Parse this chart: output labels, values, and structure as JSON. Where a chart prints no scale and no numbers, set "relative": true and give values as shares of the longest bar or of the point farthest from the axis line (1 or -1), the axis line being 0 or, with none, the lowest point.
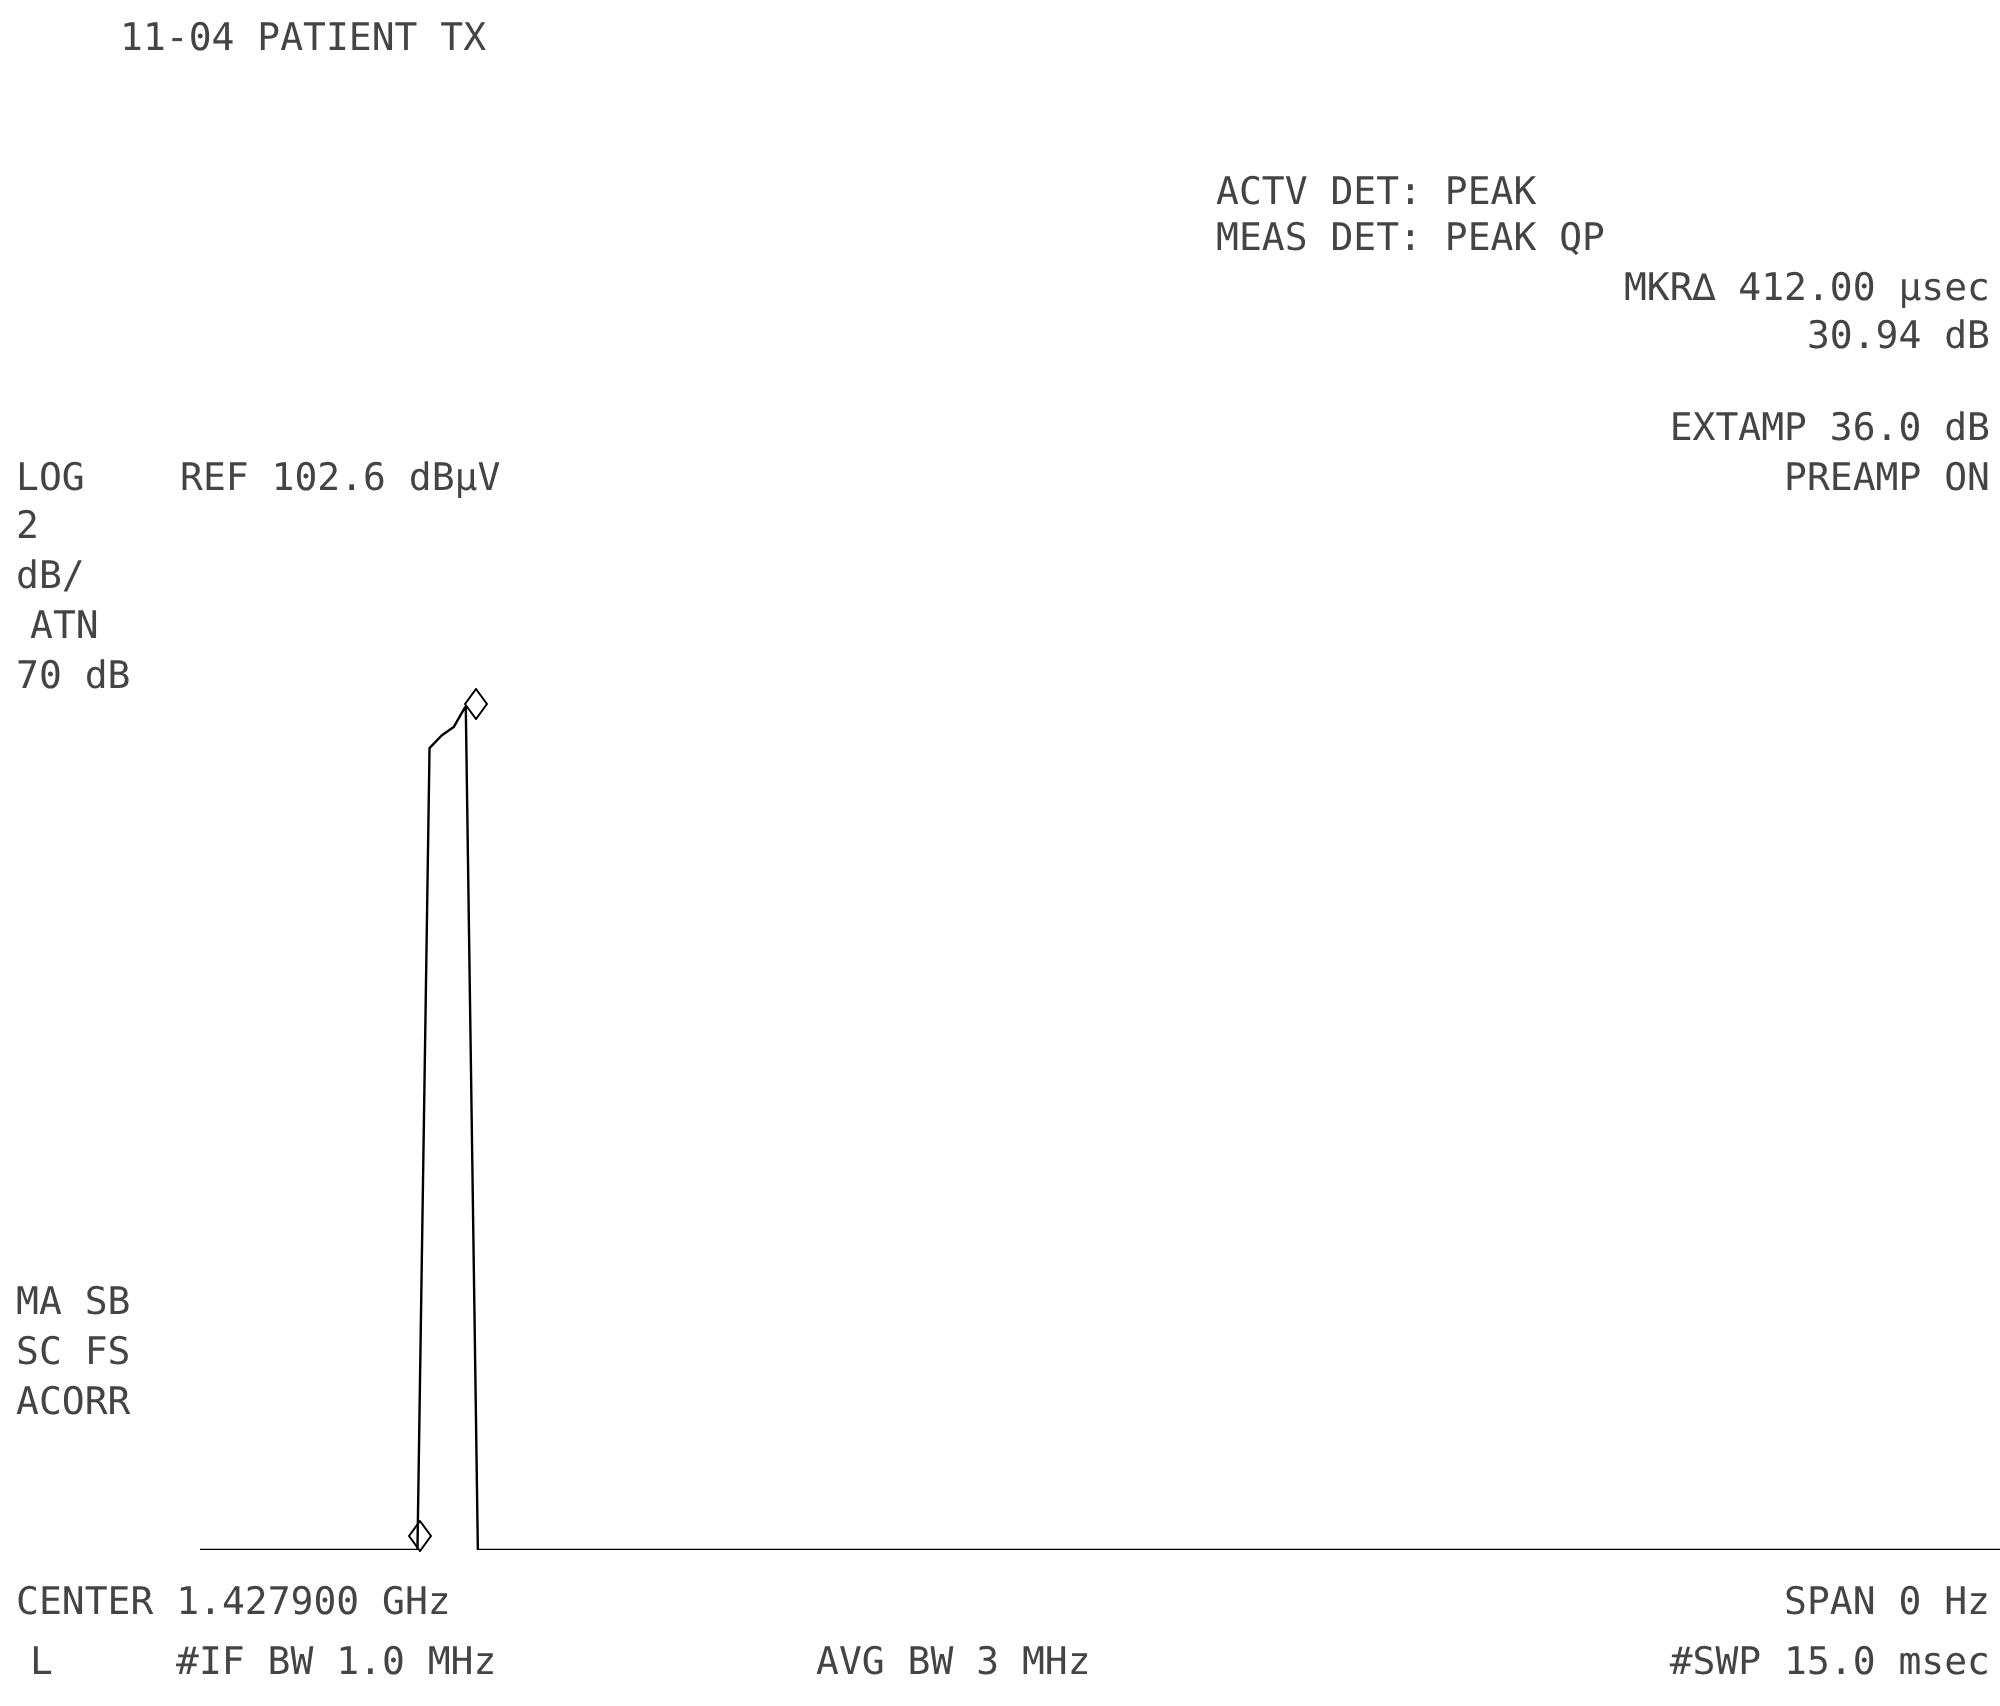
{
  "chart_data": {
    "type": "line",
    "title": "11-04 PATIENT TX",
    "relative": true,
    "categories": [
      null,
      null,
      null,
      null,
      null,
      null,
      null,
      null,
      null,
      null,
      null,
      null,
      null,
      null,
      null,
      null,
      null,
      null,
      null,
      null,
      null,
      null,
      null,
      null,
      null,
      null,
      null,
      null,
      null,
      null,
      null,
      null,
      null,
      null,
      null,
      null,
      null,
      null,
      null,
      null,
      null,
      null,
      null,
      null,
      null,
      null,
      null,
      null,
      null,
      null,
      null,
      null,
      null,
      null,
      null,
      null,
      null,
      null,
      null,
      null,
      null,
      null,
      null,
      null,
      null,
      null,
      null,
      null,
      null,
      null,
      null,
      null,
      null,
      null,
      null,
      null,
      null,
      null,
      null,
      null,
      null,
      null,
      null,
      null,
      null,
      null,
      null,
      null,
      null,
      null,
      null,
      null,
      null,
      null,
      null,
      null,
      null,
      null,
      null,
      null,
      null,
      null,
      null,
      null,
      null,
      null,
      null,
      null,
      null,
      null,
      null,
      null,
      null,
      null,
      null,
      null,
      null,
      null,
      null,
      null,
      null,
      null,
      null,
      null,
      null,
      null,
      null,
      null,
      null,
      null,
      null,
      null,
      null,
      null,
      null,
      null,
      null,
      null,
      null,
      null,
      null,
      null,
      null,
      null,
      null,
      null,
      null,
      null,
      null,
      null
    ],
    "series": [
      {
        "color": "#000000",
        "values": [
          0,
          0,
          0,
          0,
          0,
          0,
          0,
          0,
          0,
          0,
          0,
          0,
          0,
          0,
          0,
          0,
          0,
          0,
          0,
          0.95,
          0.965,
          0.975,
          1.0,
          0,
          0,
          0,
          0,
          0,
          0,
          0,
          0,
          0,
          0,
          0,
          0,
          0,
          0,
          0,
          0,
          0,
          0,
          0,
          0,
          0,
          0,
          0,
          0,
          0,
          0,
          0,
          0,
          0,
          0,
          0,
          0,
          0,
          0,
          0,
          0,
          0,
          0,
          0,
          0,
          0,
          0,
          0,
          0,
          0,
          0,
          0,
          0,
          0,
          0,
          0,
          0,
          0,
          0,
          0,
          0,
          0,
          0,
          0,
          0,
          0,
          0,
          0,
          0,
          0,
          0,
          0,
          0,
          0,
          0,
          0,
          0,
          0,
          0,
          0,
          0,
          0,
          0,
          0,
          0,
          0,
          0,
          0,
          0,
          0,
          0,
          0,
          0,
          0,
          0,
          0,
          0,
          0,
          0,
          0,
          0,
          0,
          0,
          0,
          0,
          0,
          0,
          0,
          0,
          0,
          0,
          0,
          0,
          0,
          0,
          0,
          0,
          0,
          0,
          0,
          0,
          0,
          0,
          0,
          0,
          0,
          0,
          0,
          0,
          0,
          0,
          0
        ]
      }
    ],
    "annotations": [
      "ACTV DET: PEAK",
      "MEAS DET: PEAK QP",
      "MKR∆ 412.00 µsec",
      "30.94 dB",
      "EXTAMP 36.0 dB",
      "PREAMP ON",
      "LOG",
      "REF 102.6 dBµV",
      "2",
      "dB/",
      "ATN",
      "70 dB",
      "MA SB",
      "SC FS",
      "ACORR",
      "CENTER 1.427900 GHz",
      "SPAN 0 Hz",
      "L",
      "#IF BW 1.0 MHz",
      "AVG BW 3 MHz",
      "#SWP 15.0 msec"
    ]
  }
}
